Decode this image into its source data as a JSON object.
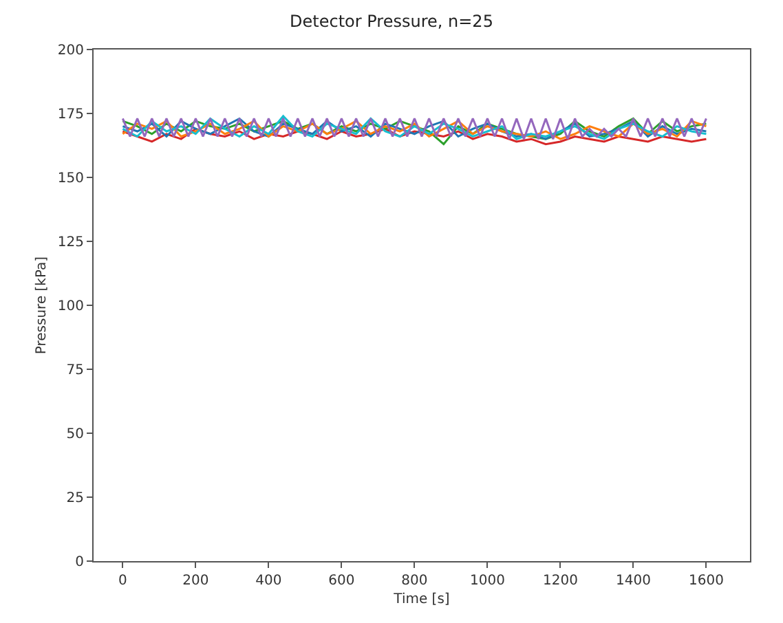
{
  "chart_data": {
    "type": "line",
    "title": "Detector Pressure, n=25",
    "xlabel": "Time [s]",
    "ylabel": "Pressure [kPa]",
    "x": [
      0,
      40,
      80,
      120,
      160,
      200,
      240,
      280,
      320,
      360,
      400,
      440,
      480,
      520,
      560,
      600,
      640,
      680,
      720,
      760,
      800,
      840,
      880,
      920,
      960,
      1000,
      1040,
      1080,
      1120,
      1160,
      1200,
      1240,
      1280,
      1320,
      1360,
      1400,
      1440,
      1480,
      1520,
      1560,
      1600
    ],
    "series": [
      {
        "color": "#d62728",
        "values": [
          168,
          166,
          164,
          167,
          165,
          169,
          167,
          166,
          168,
          165,
          167,
          166,
          168,
          167,
          165,
          168,
          166,
          167,
          169,
          166,
          168,
          167,
          166,
          168,
          165,
          167,
          166,
          164,
          165,
          163,
          164,
          166,
          165,
          164,
          166,
          165,
          164,
          166,
          165,
          164,
          165
        ]
      },
      {
        "color": "#2ca02c",
        "values": [
          172,
          170,
          167,
          171,
          168,
          172,
          170,
          169,
          171,
          168,
          170,
          172,
          169,
          171,
          167,
          170,
          168,
          171,
          169,
          172,
          170,
          168,
          163,
          170,
          167,
          171,
          169,
          167,
          166,
          165,
          167,
          172,
          168,
          166,
          170,
          173,
          167,
          172,
          168,
          170,
          171
        ]
      },
      {
        "color": "#1f77b4",
        "values": [
          170,
          168,
          171,
          166,
          172,
          169,
          167,
          170,
          173,
          168,
          166,
          171,
          169,
          167,
          172,
          168,
          170,
          166,
          171,
          169,
          167,
          170,
          172,
          166,
          169,
          171,
          168,
          166,
          167,
          165,
          168,
          171,
          166,
          167,
          169,
          172,
          166,
          170,
          167,
          169,
          168
        ]
      },
      {
        "color": "#ff7f0e",
        "values": [
          167,
          171,
          169,
          172,
          166,
          168,
          171,
          167,
          169,
          172,
          166,
          170,
          168,
          171,
          167,
          169,
          172,
          167,
          170,
          168,
          171,
          166,
          169,
          172,
          167,
          170,
          168,
          167,
          166,
          168,
          165,
          167,
          170,
          168,
          166,
          171,
          167,
          169,
          166,
          172,
          170
        ]
      },
      {
        "color": "#17becf",
        "values": [
          169,
          166,
          172,
          168,
          170,
          167,
          173,
          169,
          166,
          170,
          167,
          174,
          168,
          166,
          171,
          169,
          167,
          173,
          168,
          166,
          170,
          167,
          171,
          169,
          166,
          168,
          170,
          165,
          167,
          166,
          168,
          170,
          167,
          165,
          169,
          171,
          168,
          166,
          170,
          168,
          167
        ]
      },
      {
        "color": "#9467bd",
        "x": [
          0,
          20,
          40,
          60,
          80,
          100,
          120,
          140,
          160,
          180,
          200,
          220,
          240,
          260,
          280,
          300,
          320,
          340,
          360,
          380,
          400,
          420,
          440,
          460,
          480,
          500,
          520,
          540,
          560,
          580,
          600,
          620,
          640,
          660,
          680,
          700,
          720,
          740,
          760,
          780,
          800,
          820,
          840,
          860,
          880,
          900,
          920,
          940,
          960,
          980,
          1000,
          1020,
          1040,
          1060,
          1080,
          1100,
          1120,
          1140,
          1160,
          1180,
          1200,
          1220,
          1240,
          1260,
          1280,
          1300,
          1320,
          1340,
          1360,
          1380,
          1400,
          1420,
          1440,
          1460,
          1480,
          1500,
          1520,
          1540,
          1560,
          1580,
          1600
        ],
        "values": [
          173,
          166,
          173,
          166,
          173,
          166,
          173,
          166,
          173,
          166,
          173,
          166,
          173,
          166,
          173,
          166,
          173,
          166,
          173,
          166,
          173,
          166,
          173,
          166,
          173,
          166,
          173,
          166,
          173,
          166,
          173,
          166,
          173,
          166,
          173,
          166,
          173,
          166,
          173,
          166,
          173,
          166,
          173,
          166,
          173,
          166,
          173,
          166,
          173,
          166,
          173,
          166,
          173,
          165,
          173,
          165,
          173,
          165,
          173,
          165,
          173,
          165,
          173,
          166,
          169,
          166,
          169,
          166,
          169,
          166,
          173,
          166,
          173,
          166,
          173,
          166,
          173,
          166,
          173,
          166,
          173
        ]
      }
    ],
    "xlim": [
      -80,
      1720
    ],
    "xticks": [
      0,
      200,
      400,
      600,
      800,
      1000,
      1200,
      1400,
      1600
    ],
    "ylim": [
      0,
      200
    ],
    "yticks": [
      0,
      25,
      50,
      75,
      100,
      125,
      150,
      175,
      200
    ],
    "grid": false,
    "marker": "none",
    "line_style": "solid"
  }
}
